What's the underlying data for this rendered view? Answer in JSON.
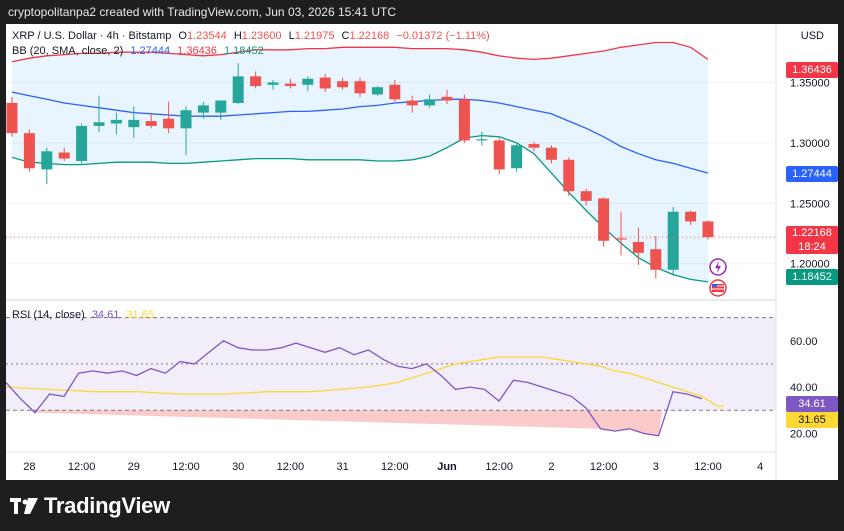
{
  "header": {
    "text": "cryptopolitanpa2 created with TradingView.com, Jun 03, 2026 15:41 UTC"
  },
  "legend": {
    "symbol": "XRP / U.S. Dollar · 4h · Bitstamp",
    "o_label": "O",
    "o": "1.23544",
    "h_label": "H",
    "h": "1.23600",
    "l_label": "L",
    "l": "1.21975",
    "c_label": "C",
    "c": "1.22168",
    "change": "−0.01372 (−1.11%)",
    "bb_label": "BB (20, SMA, close, 2)",
    "bb_basis": "1.27444",
    "bb_upper": "1.36436",
    "bb_lower": "1.18452",
    "rsi_label": "RSI (14, close)",
    "rsi_value": "34.61",
    "rsi_ma": "31.65"
  },
  "currency": "USD",
  "badges": {
    "upper": "1.36436",
    "basis": "1.27444",
    "price": "1.22168",
    "countdown": "18:24",
    "lower": "1.18452",
    "rsi": "34.61",
    "rsi_ma": "31.65"
  },
  "colors": {
    "up": "#26a69a",
    "down": "#ef5350",
    "bb_upper": "#f23645",
    "bb_basis": "#2962ff",
    "bb_lower": "#089981",
    "bb_fill": "#2196f3",
    "rsi": "#7e57c2",
    "rsi_ma": "#fdd835"
  },
  "footer": {
    "brand": "TradingView"
  },
  "chart_data": [
    {
      "type": "candlestick",
      "title": "XRP / U.S. Dollar · 4h · Bitstamp",
      "ylim": [
        1.17,
        1.395
      ],
      "y_ticks": [
        1.2,
        1.25,
        1.3,
        1.35
      ],
      "x_ticks": [
        {
          "i": 1,
          "label": "28"
        },
        {
          "i": 4,
          "label": "12:00"
        },
        {
          "i": 7,
          "label": "29"
        },
        {
          "i": 10,
          "label": "12:00"
        },
        {
          "i": 13,
          "label": "30"
        },
        {
          "i": 16,
          "label": "12:00"
        },
        {
          "i": 19,
          "label": "31"
        },
        {
          "i": 22,
          "label": "12:00"
        },
        {
          "i": 25,
          "label": "Jun"
        },
        {
          "i": 28,
          "label": "12:00"
        },
        {
          "i": 31,
          "label": "2"
        },
        {
          "i": 34,
          "label": "12:00"
        },
        {
          "i": 37,
          "label": "3"
        },
        {
          "i": 40,
          "label": "12:00"
        },
        {
          "i": 43,
          "label": "4"
        }
      ],
      "candles": [
        {
          "o": 1.333,
          "h": 1.338,
          "l": 1.305,
          "c": 1.308
        },
        {
          "o": 1.308,
          "h": 1.311,
          "l": 1.276,
          "c": 1.279
        },
        {
          "o": 1.278,
          "h": 1.296,
          "l": 1.266,
          "c": 1.293
        },
        {
          "o": 1.292,
          "h": 1.296,
          "l": 1.285,
          "c": 1.287
        },
        {
          "o": 1.285,
          "h": 1.316,
          "l": 1.283,
          "c": 1.314
        },
        {
          "o": 1.314,
          "h": 1.339,
          "l": 1.309,
          "c": 1.317
        },
        {
          "o": 1.316,
          "h": 1.325,
          "l": 1.307,
          "c": 1.319
        },
        {
          "o": 1.313,
          "h": 1.33,
          "l": 1.304,
          "c": 1.319
        },
        {
          "o": 1.318,
          "h": 1.325,
          "l": 1.312,
          "c": 1.314
        },
        {
          "o": 1.32,
          "h": 1.334,
          "l": 1.308,
          "c": 1.312
        },
        {
          "o": 1.312,
          "h": 1.33,
          "l": 1.29,
          "c": 1.327
        },
        {
          "o": 1.325,
          "h": 1.334,
          "l": 1.32,
          "c": 1.331
        },
        {
          "o": 1.325,
          "h": 1.335,
          "l": 1.319,
          "c": 1.335
        },
        {
          "o": 1.333,
          "h": 1.366,
          "l": 1.332,
          "c": 1.355
        },
        {
          "o": 1.355,
          "h": 1.359,
          "l": 1.345,
          "c": 1.347
        },
        {
          "o": 1.348,
          "h": 1.352,
          "l": 1.344,
          "c": 1.35
        },
        {
          "o": 1.349,
          "h": 1.353,
          "l": 1.345,
          "c": 1.347
        },
        {
          "o": 1.348,
          "h": 1.355,
          "l": 1.343,
          "c": 1.353
        },
        {
          "o": 1.354,
          "h": 1.357,
          "l": 1.342,
          "c": 1.345
        },
        {
          "o": 1.351,
          "h": 1.354,
          "l": 1.344,
          "c": 1.346
        },
        {
          "o": 1.351,
          "h": 1.354,
          "l": 1.338,
          "c": 1.341
        },
        {
          "o": 1.34,
          "h": 1.347,
          "l": 1.339,
          "c": 1.346
        },
        {
          "o": 1.348,
          "h": 1.352,
          "l": 1.334,
          "c": 1.336
        },
        {
          "o": 1.335,
          "h": 1.339,
          "l": 1.325,
          "c": 1.331
        },
        {
          "o": 1.331,
          "h": 1.34,
          "l": 1.329,
          "c": 1.336
        },
        {
          "o": 1.338,
          "h": 1.344,
          "l": 1.332,
          "c": 1.335
        },
        {
          "o": 1.336,
          "h": 1.34,
          "l": 1.3,
          "c": 1.302
        },
        {
          "o": 1.302,
          "h": 1.309,
          "l": 1.298,
          "c": 1.303
        },
        {
          "o": 1.302,
          "h": 1.304,
          "l": 1.274,
          "c": 1.278
        },
        {
          "o": 1.279,
          "h": 1.3,
          "l": 1.276,
          "c": 1.298
        },
        {
          "o": 1.299,
          "h": 1.301,
          "l": 1.293,
          "c": 1.296
        },
        {
          "o": 1.296,
          "h": 1.298,
          "l": 1.283,
          "c": 1.286
        },
        {
          "o": 1.286,
          "h": 1.288,
          "l": 1.256,
          "c": 1.26
        },
        {
          "o": 1.26,
          "h": 1.262,
          "l": 1.248,
          "c": 1.252
        },
        {
          "o": 1.254,
          "h": 1.255,
          "l": 1.214,
          "c": 1.219
        },
        {
          "o": 1.221,
          "h": 1.243,
          "l": 1.207,
          "c": 1.22
        },
        {
          "o": 1.218,
          "h": 1.23,
          "l": 1.199,
          "c": 1.209
        },
        {
          "o": 1.212,
          "h": 1.223,
          "l": 1.188,
          "c": 1.195
        },
        {
          "o": 1.195,
          "h": 1.247,
          "l": 1.19,
          "c": 1.243
        },
        {
          "o": 1.243,
          "h": 1.244,
          "l": 1.232,
          "c": 1.235
        },
        {
          "o": 1.235,
          "h": 1.236,
          "l": 1.22,
          "c": 1.222
        }
      ],
      "bb_upper": [
        1.367,
        1.37,
        1.372,
        1.373,
        1.374,
        1.374,
        1.375,
        1.375,
        1.375,
        1.374,
        1.373,
        1.372,
        1.373,
        1.375,
        1.377,
        1.377,
        1.377,
        1.378,
        1.378,
        1.379,
        1.379,
        1.379,
        1.379,
        1.378,
        1.378,
        1.378,
        1.377,
        1.375,
        1.372,
        1.37,
        1.369,
        1.37,
        1.372,
        1.374,
        1.376,
        1.379,
        1.381,
        1.383,
        1.383,
        1.379,
        1.369
      ],
      "bb_basis": [
        1.342,
        1.339,
        1.336,
        1.333,
        1.331,
        1.329,
        1.327,
        1.325,
        1.324,
        1.323,
        1.322,
        1.322,
        1.322,
        1.323,
        1.324,
        1.325,
        1.326,
        1.326,
        1.327,
        1.328,
        1.33,
        1.331,
        1.333,
        1.334,
        1.335,
        1.336,
        1.336,
        1.335,
        1.333,
        1.33,
        1.327,
        1.324,
        1.318,
        1.312,
        1.305,
        1.297,
        1.291,
        1.286,
        1.283,
        1.279,
        1.275
      ],
      "bb_lower": [
        1.288,
        1.284,
        1.283,
        1.282,
        1.282,
        1.283,
        1.284,
        1.284,
        1.284,
        1.283,
        1.283,
        1.284,
        1.285,
        1.286,
        1.287,
        1.287,
        1.287,
        1.286,
        1.286,
        1.286,
        1.286,
        1.285,
        1.285,
        1.286,
        1.289,
        1.296,
        1.304,
        1.306,
        1.305,
        1.3,
        1.291,
        1.275,
        1.259,
        1.244,
        1.23,
        1.217,
        1.205,
        1.197,
        1.191,
        1.187,
        1.185
      ]
    },
    {
      "type": "line",
      "title": "RSI (14, close)",
      "ylim": [
        12,
        75
      ],
      "y_ticks": [
        20,
        40,
        60
      ],
      "bands": [
        30,
        50,
        70
      ],
      "series": [
        {
          "name": "RSI",
          "values": [
            42,
            35,
            29,
            37,
            36,
            46,
            47,
            46,
            47,
            45,
            48,
            46,
            51,
            50,
            55,
            60,
            57,
            56,
            56,
            57,
            59,
            57,
            55,
            57,
            54,
            56,
            52,
            49,
            48,
            50,
            45,
            39,
            40,
            39,
            34,
            43,
            42,
            40,
            38,
            36,
            31,
            22,
            21,
            22,
            20,
            19,
            38,
            37,
            35
          ],
          "x": [
            0,
            1,
            2,
            3,
            4,
            5,
            6,
            7,
            8,
            9,
            10,
            11,
            12,
            13,
            14,
            15,
            16,
            17,
            18,
            19,
            20,
            21,
            22,
            23,
            24,
            25,
            26,
            27,
            28,
            29,
            30,
            31,
            32,
            33,
            34,
            35,
            36,
            37,
            38,
            39,
            40,
            41,
            42,
            43,
            44,
            45,
            46,
            47,
            48
          ]
        },
        {
          "name": "RSI MA",
          "values": [
            40,
            39,
            38,
            38,
            37,
            37,
            38,
            38,
            39,
            40,
            42,
            44,
            46,
            48,
            50,
            51,
            52,
            53,
            53,
            53,
            53,
            52,
            51,
            50,
            49,
            47,
            46,
            44,
            42,
            40,
            38,
            36,
            34,
            32,
            31.65
          ],
          "x": [
            0,
            3,
            6,
            9,
            12,
            15,
            18,
            21,
            23,
            25,
            27,
            28,
            29,
            30,
            31,
            32,
            33,
            34,
            35,
            36,
            37,
            38,
            39,
            40,
            41,
            42,
            43,
            44,
            45,
            46,
            47,
            48,
            48.5,
            49,
            49.5
          ]
        }
      ]
    }
  ]
}
